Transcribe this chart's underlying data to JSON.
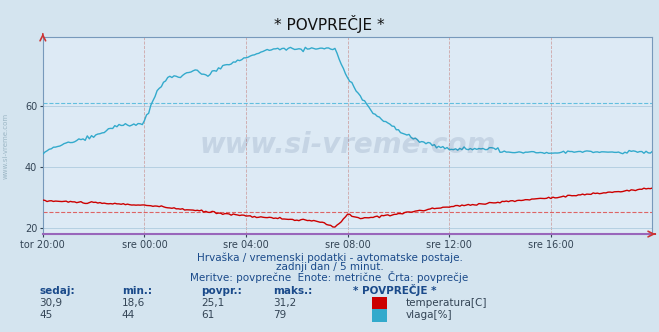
{
  "title": "* POVPREČJE *",
  "bg_color": "#d4e4ef",
  "plot_bg_color": "#ddeaf5",
  "grid_color_h": "#aac8dc",
  "grid_color_v": "#d4a0a0",
  "x_labels": [
    "tor 20:00",
    "sre 00:00",
    "sre 04:00",
    "sre 08:00",
    "sre 12:00",
    "sre 16:00"
  ],
  "ylim": [
    18,
    83
  ],
  "yticks": [
    20,
    40,
    60
  ],
  "temp_color": "#cc0000",
  "vlaga_color": "#33aacc",
  "temp_avg": 25.1,
  "vlaga_avg": 61,
  "dashed_temp_color": "#cc3333",
  "dashed_vlaga_color": "#33aacc",
  "watermark_color": "#1a3a6a",
  "subtitle1": "Hrvaška / vremenski podatki - avtomatske postaje.",
  "subtitle2": "zadnji dan / 5 minut.",
  "subtitle3": "Meritve: povprečne  Enote: metrične  Črta: povprečje",
  "label_color": "#1a4a8a",
  "temp_sedaj": "30,9",
  "temp_min": "18,6",
  "temp_povpr": "25,1",
  "temp_maks": "31,2",
  "vlaga_sedaj": "45",
  "vlaga_min": "44",
  "vlaga_povpr": "61",
  "vlaga_maks": "79",
  "n_points": 289
}
